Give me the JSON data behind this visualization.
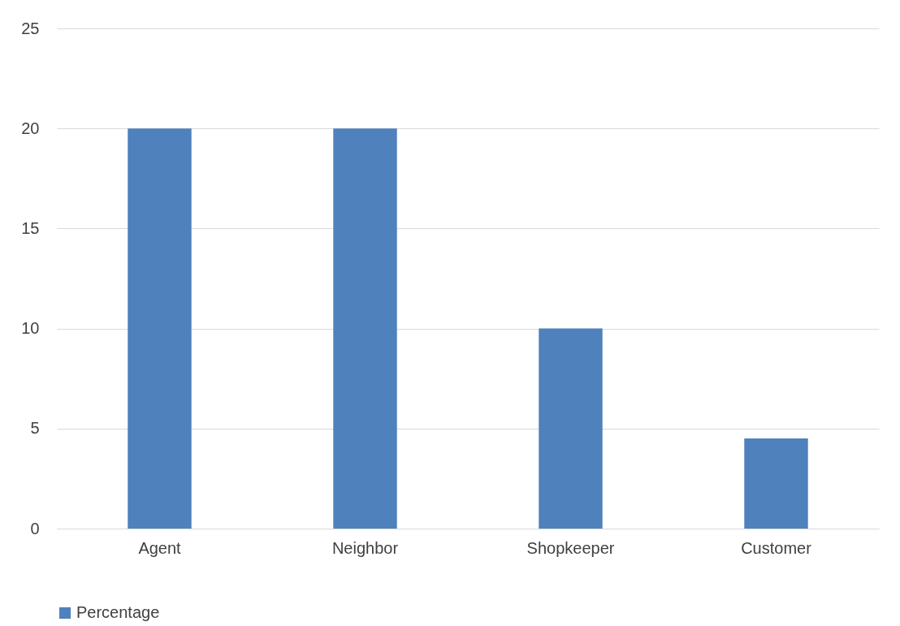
{
  "chart_data": {
    "type": "bar",
    "categories": [
      "Agent",
      "Neighbor",
      "Shopkeeper",
      "Customer"
    ],
    "series": [
      {
        "name": "Percentage",
        "color": "#4f81bd",
        "values": [
          20,
          20,
          10,
          4.5
        ]
      }
    ],
    "ylim": [
      0,
      25
    ],
    "yticks": [
      0,
      5,
      10,
      15,
      20,
      25
    ],
    "grid": "y",
    "legend": "bottom"
  }
}
